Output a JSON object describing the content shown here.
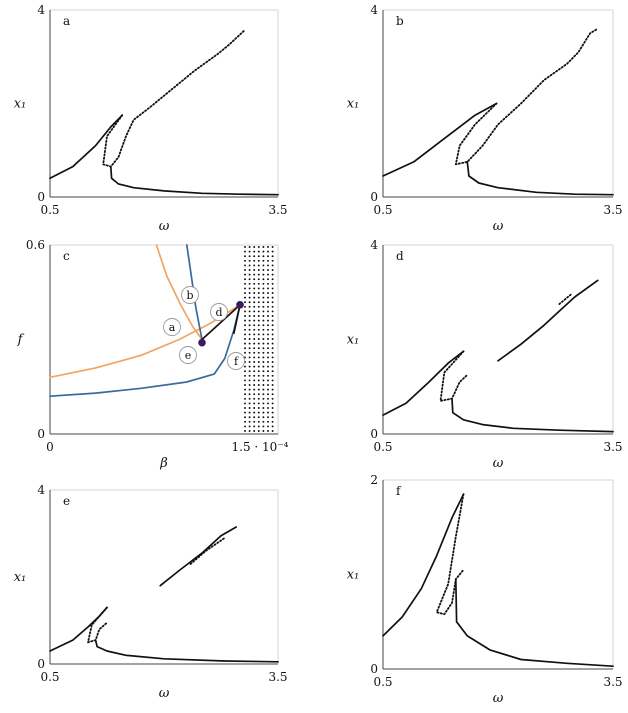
{
  "chart_data": [
    {
      "type": "line",
      "panel_label": "a",
      "xlabel": "ω",
      "ylabel": "x₁",
      "xlim": [
        0.5,
        3.5
      ],
      "ylim": [
        0,
        4
      ],
      "x_ticks": [
        "0.5",
        "3.5"
      ],
      "y_ticks": [
        "0",
        "4"
      ],
      "series": [
        {
          "style": "solid",
          "points": [
            [
              0.5,
              0.4
            ],
            [
              0.8,
              0.65
            ],
            [
              1.1,
              1.1
            ],
            [
              1.3,
              1.5
            ],
            [
              1.45,
              1.75
            ]
          ]
        },
        {
          "style": "dotted",
          "points": [
            [
              1.45,
              1.75
            ],
            [
              1.25,
              1.3
            ],
            [
              1.2,
              0.7
            ],
            [
              1.3,
              0.65
            ],
            [
              1.4,
              0.85
            ],
            [
              1.5,
              1.3
            ],
            [
              1.6,
              1.65
            ],
            [
              1.8,
              1.9
            ],
            [
              2.1,
              2.3
            ],
            [
              2.4,
              2.7
            ],
            [
              2.7,
              3.05
            ],
            [
              2.85,
              3.25
            ],
            [
              3.05,
              3.55
            ]
          ]
        },
        {
          "style": "solid",
          "points": [
            [
              1.3,
              0.65
            ],
            [
              1.31,
              0.4
            ],
            [
              1.4,
              0.28
            ],
            [
              1.6,
              0.2
            ],
            [
              2.0,
              0.13
            ],
            [
              2.5,
              0.08
            ],
            [
              3.0,
              0.06
            ],
            [
              3.5,
              0.05
            ]
          ]
        }
      ]
    },
    {
      "type": "line",
      "panel_label": "b",
      "xlabel": "ω",
      "ylabel": "x₁",
      "xlim": [
        0.5,
        3.5
      ],
      "ylim": [
        0,
        4
      ],
      "x_ticks": [
        "0.5",
        "3.5"
      ],
      "y_ticks": [
        "0",
        "4"
      ],
      "series": [
        {
          "style": "solid",
          "points": [
            [
              0.5,
              0.45
            ],
            [
              0.9,
              0.75
            ],
            [
              1.3,
              1.25
            ],
            [
              1.7,
              1.75
            ],
            [
              1.98,
              2.0
            ]
          ]
        },
        {
          "style": "dotted",
          "points": [
            [
              1.98,
              2.0
            ],
            [
              1.7,
              1.55
            ],
            [
              1.5,
              1.1
            ],
            [
              1.45,
              0.7
            ],
            [
              1.6,
              0.75
            ],
            [
              1.8,
              1.1
            ],
            [
              2.0,
              1.55
            ],
            [
              2.3,
              2.0
            ],
            [
              2.6,
              2.5
            ],
            [
              2.9,
              2.85
            ],
            [
              3.05,
              3.1
            ],
            [
              3.2,
              3.5
            ],
            [
              3.3,
              3.6
            ]
          ]
        },
        {
          "style": "solid",
          "points": [
            [
              1.6,
              0.75
            ],
            [
              1.62,
              0.45
            ],
            [
              1.75,
              0.3
            ],
            [
              2.0,
              0.2
            ],
            [
              2.5,
              0.1
            ],
            [
              3.0,
              0.06
            ],
            [
              3.5,
              0.05
            ]
          ]
        }
      ]
    },
    {
      "type": "line",
      "panel_label": "c",
      "xlabel": "β",
      "ylabel": "f",
      "xlim": [
        0,
        1.5
      ],
      "ylim": [
        0,
        0.6
      ],
      "x_ticks": [
        "0",
        "1.5 · 10⁻⁴"
      ],
      "y_ticks": [
        "0",
        "0.6"
      ],
      "regions": [
        "a",
        "b",
        "c",
        "d",
        "e",
        "f"
      ],
      "region_labels": [
        "a",
        "b",
        "d",
        "e",
        "f"
      ],
      "colors": {
        "orange": "#f4a460",
        "blue": "#3a6a9a",
        "point": "#3c1a5b"
      },
      "series": [
        {
          "color": "orange",
          "points": [
            [
              0,
              0.18
            ],
            [
              0.3,
              0.21
            ],
            [
              0.6,
              0.25
            ],
            [
              0.85,
              0.3
            ],
            [
              1.05,
              0.35
            ],
            [
              1.25,
              0.41
            ]
          ]
        },
        {
          "color": "orange",
          "points": [
            [
              0.7,
              0.6
            ],
            [
              0.77,
              0.5
            ],
            [
              0.86,
              0.41
            ],
            [
              0.94,
              0.34
            ],
            [
              1.0,
              0.3
            ]
          ]
        },
        {
          "color": "blue",
          "points": [
            [
              0,
              0.12
            ],
            [
              0.3,
              0.13
            ],
            [
              0.6,
              0.145
            ],
            [
              0.9,
              0.165
            ],
            [
              1.08,
              0.19
            ],
            [
              1.15,
              0.24
            ],
            [
              1.21,
              0.33
            ],
            [
              1.25,
              0.41
            ]
          ]
        },
        {
          "color": "blue",
          "points": [
            [
              0.9,
              0.6
            ],
            [
              0.93,
              0.5
            ],
            [
              0.96,
              0.4
            ],
            [
              1.0,
              0.3
            ]
          ]
        },
        {
          "color": "black",
          "points": [
            [
              1.0,
              0.3
            ],
            [
              1.25,
              0.41
            ]
          ]
        },
        {
          "color": "black",
          "points": [
            [
              1.25,
              0.41
            ],
            [
              1.21,
              0.32
            ]
          ]
        }
      ],
      "special_points": [
        [
          1.0,
          0.29
        ],
        [
          1.25,
          0.41
        ]
      ],
      "hatched_region": {
        "x_from": 1.27,
        "x_to": 1.5
      }
    },
    {
      "type": "line",
      "panel_label": "d",
      "xlabel": "ω",
      "ylabel": "x₁",
      "xlim": [
        0.5,
        3.5
      ],
      "ylim": [
        0,
        4
      ],
      "x_ticks": [
        "0.5",
        "3.5"
      ],
      "y_ticks": [
        "0",
        "4"
      ],
      "series": [
        {
          "style": "solid",
          "points": [
            [
              0.5,
              0.4
            ],
            [
              0.8,
              0.65
            ],
            [
              1.1,
              1.1
            ],
            [
              1.35,
              1.5
            ],
            [
              1.55,
              1.75
            ]
          ]
        },
        {
          "style": "dotted",
          "points": [
            [
              1.55,
              1.75
            ],
            [
              1.3,
              1.3
            ],
            [
              1.25,
              0.7
            ],
            [
              1.4,
              0.75
            ],
            [
              1.5,
              1.1
            ],
            [
              1.6,
              1.25
            ]
          ]
        },
        {
          "style": "solid",
          "points": [
            [
              1.4,
              0.75
            ],
            [
              1.41,
              0.45
            ],
            [
              1.55,
              0.3
            ],
            [
              1.8,
              0.2
            ],
            [
              2.2,
              0.12
            ],
            [
              2.8,
              0.08
            ],
            [
              3.5,
              0.05
            ]
          ]
        },
        {
          "style": "solid",
          "points": [
            [
              2.0,
              1.55
            ],
            [
              2.3,
              1.9
            ],
            [
              2.6,
              2.3
            ],
            [
              2.8,
              2.6
            ],
            [
              3.0,
              2.9
            ],
            [
              3.3,
              3.25
            ]
          ]
        },
        {
          "style": "dotted",
          "points": [
            [
              2.8,
              2.75
            ],
            [
              2.95,
              2.95
            ]
          ]
        }
      ]
    },
    {
      "type": "line",
      "panel_label": "e",
      "xlabel": "ω",
      "ylabel": "x₁",
      "xlim": [
        0.5,
        3.5
      ],
      "ylim": [
        0,
        4
      ],
      "x_ticks": [
        "0.5",
        "3.5"
      ],
      "y_ticks": [
        "0",
        "4"
      ],
      "series": [
        {
          "style": "solid",
          "points": [
            [
              0.5,
              0.3
            ],
            [
              0.8,
              0.55
            ],
            [
              1.0,
              0.85
            ],
            [
              1.15,
              1.1
            ],
            [
              1.25,
              1.3
            ]
          ]
        },
        {
          "style": "dotted",
          "points": [
            [
              1.25,
              1.3
            ],
            [
              1.05,
              0.9
            ],
            [
              1.0,
              0.5
            ],
            [
              1.1,
              0.55
            ],
            [
              1.15,
              0.8
            ],
            [
              1.25,
              0.95
            ]
          ]
        },
        {
          "style": "solid",
          "points": [
            [
              1.1,
              0.55
            ],
            [
              1.12,
              0.4
            ],
            [
              1.25,
              0.3
            ],
            [
              1.5,
              0.2
            ],
            [
              2.0,
              0.12
            ],
            [
              2.8,
              0.07
            ],
            [
              3.5,
              0.05
            ]
          ]
        },
        {
          "style": "solid",
          "points": [
            [
              1.95,
              1.8
            ],
            [
              2.2,
              2.15
            ],
            [
              2.5,
              2.55
            ],
            [
              2.75,
              2.95
            ],
            [
              2.95,
              3.15
            ]
          ]
        },
        {
          "style": "dotted",
          "points": [
            [
              2.35,
              2.3
            ],
            [
              2.55,
              2.6
            ],
            [
              2.8,
              2.9
            ]
          ]
        }
      ]
    },
    {
      "type": "line",
      "panel_label": "f",
      "xlabel": "ω",
      "ylabel": "x₁",
      "xlim": [
        0.5,
        3.5
      ],
      "ylim": [
        0,
        2
      ],
      "x_ticks": [
        "0.5",
        "3.5"
      ],
      "y_ticks": [
        "0",
        "2"
      ],
      "series": [
        {
          "style": "solid",
          "points": [
            [
              0.5,
              0.35
            ],
            [
              0.75,
              0.55
            ],
            [
              1.0,
              0.85
            ],
            [
              1.2,
              1.2
            ],
            [
              1.4,
              1.6
            ],
            [
              1.55,
              1.85
            ]
          ]
        },
        {
          "style": "dotted",
          "points": [
            [
              1.55,
              1.85
            ],
            [
              1.45,
              1.4
            ],
            [
              1.35,
              0.9
            ],
            [
              1.2,
              0.6
            ],
            [
              1.3,
              0.58
            ],
            [
              1.4,
              0.7
            ],
            [
              1.45,
              0.95
            ],
            [
              1.55,
              1.05
            ]
          ]
        },
        {
          "style": "solid",
          "points": [
            [
              1.45,
              0.95
            ],
            [
              1.46,
              0.5
            ],
            [
              1.6,
              0.35
            ],
            [
              1.9,
              0.2
            ],
            [
              2.3,
              0.1
            ],
            [
              2.9,
              0.06
            ],
            [
              3.5,
              0.03
            ]
          ]
        }
      ]
    }
  ]
}
